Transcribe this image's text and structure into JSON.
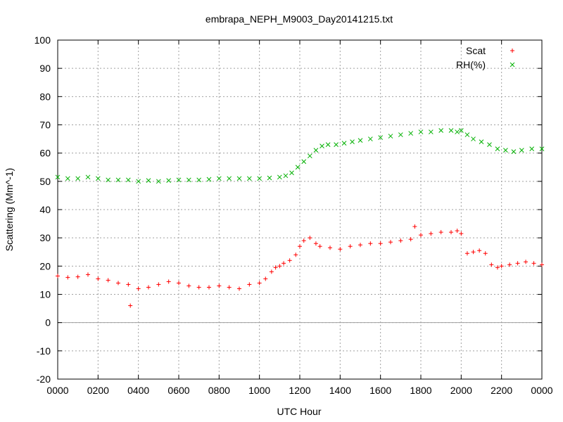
{
  "chart_data": {
    "type": "scatter",
    "title": "embrapa_NEPH_M9003_Day20141215.txt",
    "xlabel": "UTC Hour",
    "ylabel": "Scattering (Mm^-1)",
    "xlim": [
      0,
      24
    ],
    "ylim": [
      -20,
      100
    ],
    "x_ticks": [
      {
        "value": 0,
        "label": "0000"
      },
      {
        "value": 2,
        "label": "0200"
      },
      {
        "value": 4,
        "label": "0400"
      },
      {
        "value": 6,
        "label": "0600"
      },
      {
        "value": 8,
        "label": "0800"
      },
      {
        "value": 10,
        "label": "1000"
      },
      {
        "value": 12,
        "label": "1200"
      },
      {
        "value": 14,
        "label": "1400"
      },
      {
        "value": 16,
        "label": "1600"
      },
      {
        "value": 18,
        "label": "1800"
      },
      {
        "value": 20,
        "label": "2000"
      },
      {
        "value": 22,
        "label": "2200"
      },
      {
        "value": 24,
        "label": "0000"
      }
    ],
    "y_ticks": [
      {
        "value": -20,
        "label": "-20"
      },
      {
        "value": -10,
        "label": "-10"
      },
      {
        "value": 0,
        "label": "0"
      },
      {
        "value": 10,
        "label": "10"
      },
      {
        "value": 20,
        "label": "20"
      },
      {
        "value": 30,
        "label": "30"
      },
      {
        "value": 40,
        "label": "40"
      },
      {
        "value": 50,
        "label": "50"
      },
      {
        "value": 60,
        "label": "60"
      },
      {
        "value": 70,
        "label": "70"
      },
      {
        "value": 80,
        "label": "80"
      },
      {
        "value": 90,
        "label": "90"
      },
      {
        "value": 100,
        "label": "100"
      }
    ],
    "grid": true,
    "zero_line": true,
    "legend_position": "top-right",
    "series": [
      {
        "name": "Scat",
        "marker": "+",
        "color": "#ff0000",
        "x": [
          0.0,
          0.5,
          1.0,
          1.5,
          2.0,
          2.5,
          3.0,
          3.5,
          3.6,
          4.0,
          4.5,
          5.0,
          5.5,
          6.0,
          6.5,
          7.0,
          7.5,
          8.0,
          8.5,
          9.0,
          9.5,
          10.0,
          10.3,
          10.6,
          10.8,
          11.0,
          11.2,
          11.5,
          11.8,
          12.0,
          12.2,
          12.5,
          12.8,
          13.0,
          13.5,
          14.0,
          14.5,
          15.0,
          15.5,
          16.0,
          16.5,
          17.0,
          17.5,
          17.7,
          18.0,
          18.5,
          19.0,
          19.5,
          19.8,
          20.0,
          20.3,
          20.6,
          20.9,
          21.2,
          21.5,
          21.8,
          22.0,
          22.4,
          22.8,
          23.2,
          23.6,
          24.0
        ],
        "y": [
          16.5,
          16.0,
          16.2,
          17.0,
          15.5,
          15.0,
          14.0,
          13.5,
          6.0,
          12.0,
          12.5,
          13.5,
          14.5,
          14.0,
          13.0,
          12.5,
          12.5,
          13.0,
          12.5,
          12.0,
          13.5,
          14.0,
          15.5,
          18.0,
          19.5,
          20.0,
          21.0,
          22.0,
          24.0,
          27.0,
          29.0,
          30.0,
          28.0,
          27.0,
          26.5,
          26.0,
          27.0,
          27.5,
          28.0,
          28.0,
          28.5,
          29.0,
          29.5,
          34.0,
          31.0,
          31.5,
          32.0,
          32.0,
          32.5,
          31.5,
          24.5,
          25.0,
          25.5,
          24.5,
          20.5,
          19.5,
          20.0,
          20.5,
          21.0,
          21.5,
          21.0,
          20.5
        ]
      },
      {
        "name": "RH(%)",
        "marker": "x",
        "color": "#00b000",
        "x": [
          0.0,
          0.5,
          1.0,
          1.5,
          2.0,
          2.5,
          3.0,
          3.5,
          4.0,
          4.5,
          5.0,
          5.5,
          6.0,
          6.5,
          7.0,
          7.5,
          8.0,
          8.5,
          9.0,
          9.5,
          10.0,
          10.5,
          11.0,
          11.3,
          11.6,
          11.9,
          12.2,
          12.5,
          12.8,
          13.1,
          13.4,
          13.8,
          14.2,
          14.6,
          15.0,
          15.5,
          16.0,
          16.5,
          17.0,
          17.5,
          18.0,
          18.5,
          19.0,
          19.5,
          19.8,
          20.0,
          20.3,
          20.6,
          21.0,
          21.4,
          21.8,
          22.2,
          22.6,
          23.0,
          23.5,
          24.0
        ],
        "y": [
          51.5,
          51.0,
          51.0,
          51.5,
          51.0,
          50.5,
          50.5,
          50.5,
          50.0,
          50.3,
          50.0,
          50.3,
          50.5,
          50.5,
          50.5,
          50.7,
          51.0,
          51.0,
          51.0,
          51.0,
          51.0,
          51.2,
          51.5,
          52.0,
          53.0,
          55.0,
          57.0,
          59.0,
          61.0,
          62.5,
          63.0,
          63.0,
          63.5,
          64.0,
          64.5,
          65.0,
          65.5,
          66.0,
          66.5,
          67.0,
          67.5,
          67.5,
          68.0,
          68.0,
          67.5,
          68.0,
          66.5,
          65.0,
          64.0,
          63.0,
          61.5,
          61.0,
          60.5,
          61.0,
          61.5,
          61.5
        ]
      }
    ]
  }
}
